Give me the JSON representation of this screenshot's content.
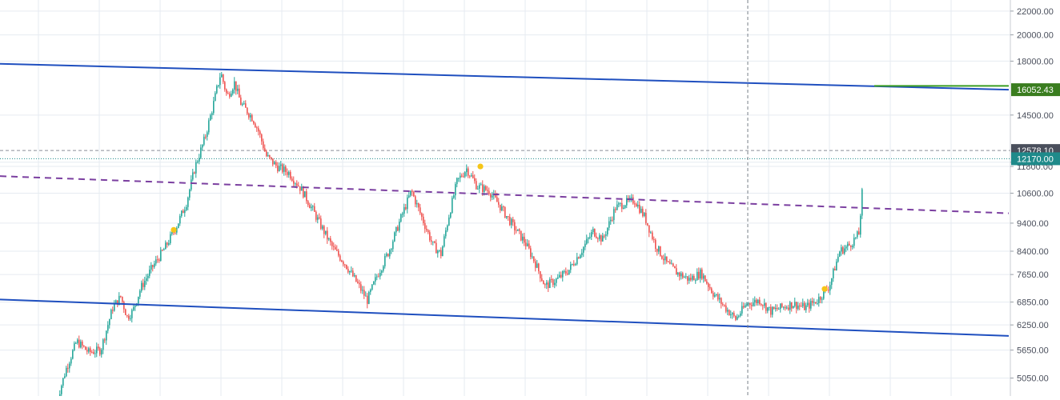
{
  "chart_data": {
    "type": "candlestick",
    "y_scale": "log",
    "ylim": [
      4700,
      23000
    ],
    "grid": true,
    "y_ticks": [
      {
        "value": 22000,
        "label": "22000.00"
      },
      {
        "value": 20000,
        "label": "20000.00"
      },
      {
        "value": 18000,
        "label": "18000.00"
      },
      {
        "value": 14500,
        "label": "14500.00"
      },
      {
        "value": 12000,
        "label": "12000.00"
      },
      {
        "value": 11800,
        "label": "11800.00"
      },
      {
        "value": 10600,
        "label": "10600.00"
      },
      {
        "value": 9400,
        "label": "9400.00"
      },
      {
        "value": 8400,
        "label": "8400.00"
      },
      {
        "value": 7650,
        "label": "7650.00"
      },
      {
        "value": 6850,
        "label": "6850.00"
      },
      {
        "value": 6250,
        "label": "6250.00"
      },
      {
        "value": 5650,
        "label": "5650.00"
      },
      {
        "value": 5050,
        "label": "5050.00"
      }
    ],
    "price_labels": [
      {
        "value": 16052.43,
        "label": "16052.43",
        "color": "#3a7d1f",
        "name": "last-price-label"
      },
      {
        "value": 12578.1,
        "label": "12578.10",
        "color": "#4a4f5c",
        "name": "crosshair-price-label"
      },
      {
        "value": 12170.0,
        "label": "12170.00",
        "color": "#1f8a8a",
        "name": "horizontal-line-label"
      }
    ],
    "horizontal_lines": [
      {
        "value": 12578.1,
        "color": "#8a8f99",
        "style": "dashed"
      },
      {
        "value": 12170.0,
        "color": "#1f8a8a",
        "style": "dotted"
      }
    ],
    "trend_lines": [
      {
        "name": "upper-channel-line",
        "color": "#1f4fbf",
        "style": "solid",
        "from": [
          0,
          17810
        ],
        "to": [
          1260,
          16052
        ]
      },
      {
        "name": "lower-channel-line",
        "color": "#1f4fbf",
        "style": "solid",
        "from": [
          0,
          6920
        ],
        "to": [
          1260,
          5980
        ]
      },
      {
        "name": "neckline",
        "color": "#7b3fa0",
        "style": "dashed",
        "from": [
          0,
          11350
        ],
        "to": [
          1260,
          9780
        ]
      },
      {
        "name": "target-line",
        "color": "#3a9d23",
        "style": "solid",
        "from": [
          1092,
          16300
        ],
        "to": [
          1260,
          16300
        ]
      }
    ],
    "crosshair_x": 934,
    "signal_markers": [
      {
        "bar": 217,
        "value": 9150,
        "color": "#f5c518"
      },
      {
        "bar": 600,
        "value": 11800,
        "color": "#f5c518"
      },
      {
        "bar": 1030,
        "value": 7220,
        "color": "#f5c518"
      }
    ],
    "waypoints": [
      [
        70,
        4600
      ],
      [
        82,
        5250
      ],
      [
        95,
        5850
      ],
      [
        110,
        5600
      ],
      [
        125,
        5650
      ],
      [
        140,
        6700
      ],
      [
        150,
        7000
      ],
      [
        158,
        6450
      ],
      [
        165,
        6600
      ],
      [
        175,
        7250
      ],
      [
        190,
        7900
      ],
      [
        205,
        8500
      ],
      [
        220,
        9300
      ],
      [
        232,
        10200
      ],
      [
        243,
        11800
      ],
      [
        255,
        13200
      ],
      [
        265,
        15000
      ],
      [
        275,
        17200
      ],
      [
        283,
        15600
      ],
      [
        292,
        16500
      ],
      [
        300,
        15200
      ],
      [
        315,
        14300
      ],
      [
        322,
        13600
      ],
      [
        332,
        12300
      ],
      [
        345,
        11800
      ],
      [
        360,
        11500
      ],
      [
        375,
        10800
      ],
      [
        390,
        9900
      ],
      [
        400,
        9300
      ],
      [
        415,
        8500
      ],
      [
        430,
        8000
      ],
      [
        445,
        7400
      ],
      [
        458,
        6900
      ],
      [
        470,
        7600
      ],
      [
        485,
        8400
      ],
      [
        500,
        9600
      ],
      [
        513,
        10700
      ],
      [
        525,
        9700
      ],
      [
        540,
        8600
      ],
      [
        550,
        8300
      ],
      [
        560,
        9700
      ],
      [
        570,
        11100
      ],
      [
        582,
        11700
      ],
      [
        595,
        10900
      ],
      [
        610,
        10700
      ],
      [
        625,
        10000
      ],
      [
        640,
        9300
      ],
      [
        655,
        8700
      ],
      [
        668,
        8000
      ],
      [
        680,
        7300
      ],
      [
        695,
        7500
      ],
      [
        710,
        7800
      ],
      [
        725,
        8400
      ],
      [
        740,
        9100
      ],
      [
        752,
        8800
      ],
      [
        768,
        10000
      ],
      [
        780,
        10200
      ],
      [
        792,
        10300
      ],
      [
        805,
        9600
      ],
      [
        818,
        8600
      ],
      [
        832,
        8000
      ],
      [
        845,
        7700
      ],
      [
        860,
        7500
      ],
      [
        875,
        7700
      ],
      [
        890,
        7100
      ],
      [
        905,
        6700
      ],
      [
        918,
        6400
      ],
      [
        932,
        6800
      ],
      [
        948,
        6900
      ],
      [
        962,
        6600
      ],
      [
        975,
        6700
      ],
      [
        990,
        6800
      ],
      [
        1005,
        6700
      ],
      [
        1020,
        6900
      ],
      [
        1035,
        7300
      ],
      [
        1048,
        8400
      ],
      [
        1060,
        8600
      ],
      [
        1072,
        9000
      ],
      [
        1076,
        10600
      ]
    ],
    "colors": {
      "up": "#26a69a",
      "down": "#ef5350",
      "grid": "#e6ebf1"
    }
  }
}
